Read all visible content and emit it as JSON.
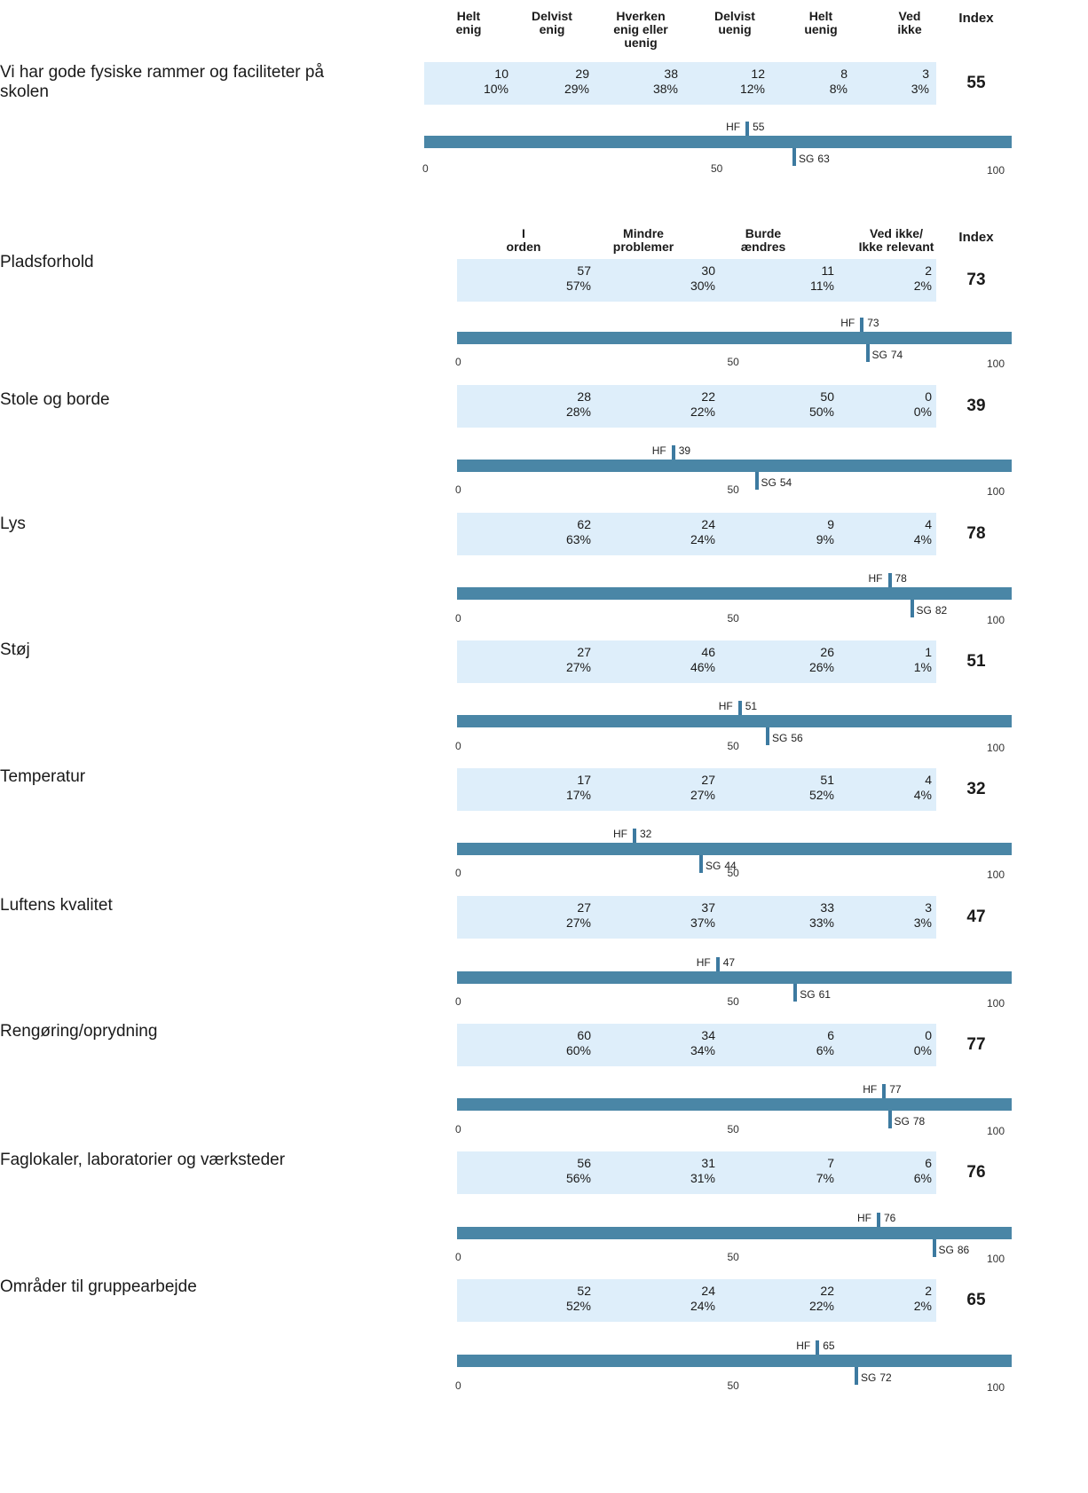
{
  "section1": {
    "headers": [
      "Helt\nenig",
      "Delvist\nenig",
      "Hverken\nenig eller\nuenig",
      "Delvist\nuenig",
      "Helt\nuenig",
      "Ved\nikke"
    ],
    "index_header": "Index"
  },
  "section2": {
    "headers": [
      "I\norden",
      "Mindre\nproblemer",
      "Burde\nændres",
      "Ved ikke/\nIkke relevant"
    ],
    "index_header": "Index"
  },
  "axis": {
    "min_label": "0",
    "mid_label": "50",
    "max_label": "100",
    "hf_prefix": "HF",
    "sg_prefix": "SG"
  },
  "colors": {
    "band": "#deeefa",
    "scale_bar": "#4a86a6",
    "marker": "#3d7aa0"
  },
  "chart_data": {
    "type": "table",
    "scale_range": [
      0,
      100
    ],
    "questions": [
      {
        "label": "Vi har gode fysiske rammer og faciliteter på\nskolen",
        "scale": "agreement",
        "counts": [
          "10",
          "29",
          "38",
          "12",
          "8",
          "3"
        ],
        "percents": [
          "10%",
          "29%",
          "38%",
          "12%",
          "8%",
          "3%"
        ],
        "index": 55,
        "hf": 55,
        "sg": 63
      },
      {
        "label": "Pladsforhold",
        "scale": "condition",
        "counts": [
          "57",
          "30",
          "11",
          "2"
        ],
        "percents": [
          "57%",
          "30%",
          "11%",
          "2%"
        ],
        "index": 73,
        "hf": 73,
        "sg": 74
      },
      {
        "label": "Stole og borde",
        "scale": "condition",
        "counts": [
          "28",
          "22",
          "50",
          "0"
        ],
        "percents": [
          "28%",
          "22%",
          "50%",
          "0%"
        ],
        "index": 39,
        "hf": 39,
        "sg": 54
      },
      {
        "label": "Lys",
        "scale": "condition",
        "counts": [
          "62",
          "24",
          "9",
          "4"
        ],
        "percents": [
          "63%",
          "24%",
          "9%",
          "4%"
        ],
        "index": 78,
        "hf": 78,
        "sg": 82
      },
      {
        "label": "Støj",
        "scale": "condition",
        "counts": [
          "27",
          "46",
          "26",
          "1"
        ],
        "percents": [
          "27%",
          "46%",
          "26%",
          "1%"
        ],
        "index": 51,
        "hf": 51,
        "sg": 56
      },
      {
        "label": "Temperatur",
        "scale": "condition",
        "counts": [
          "17",
          "27",
          "51",
          "4"
        ],
        "percents": [
          "17%",
          "27%",
          "52%",
          "4%"
        ],
        "index": 32,
        "hf": 32,
        "sg": 44
      },
      {
        "label": "Luftens kvalitet",
        "scale": "condition",
        "counts": [
          "27",
          "37",
          "33",
          "3"
        ],
        "percents": [
          "27%",
          "37%",
          "33%",
          "3%"
        ],
        "index": 47,
        "hf": 47,
        "sg": 61
      },
      {
        "label": "Rengøring/oprydning",
        "scale": "condition",
        "counts": [
          "60",
          "34",
          "6",
          "0"
        ],
        "percents": [
          "60%",
          "34%",
          "6%",
          "0%"
        ],
        "index": 77,
        "hf": 77,
        "sg": 78
      },
      {
        "label": "Faglokaler, laboratorier og værksteder",
        "scale": "condition",
        "counts": [
          "56",
          "31",
          "7",
          "6"
        ],
        "percents": [
          "56%",
          "31%",
          "7%",
          "6%"
        ],
        "index": 76,
        "hf": 76,
        "sg": 86
      },
      {
        "label": "Områder til gruppearbejde",
        "scale": "condition",
        "counts": [
          "52",
          "24",
          "22",
          "2"
        ],
        "percents": [
          "52%",
          "24%",
          "22%",
          "2%"
        ],
        "index": 65,
        "hf": 65,
        "sg": 72
      }
    ]
  }
}
